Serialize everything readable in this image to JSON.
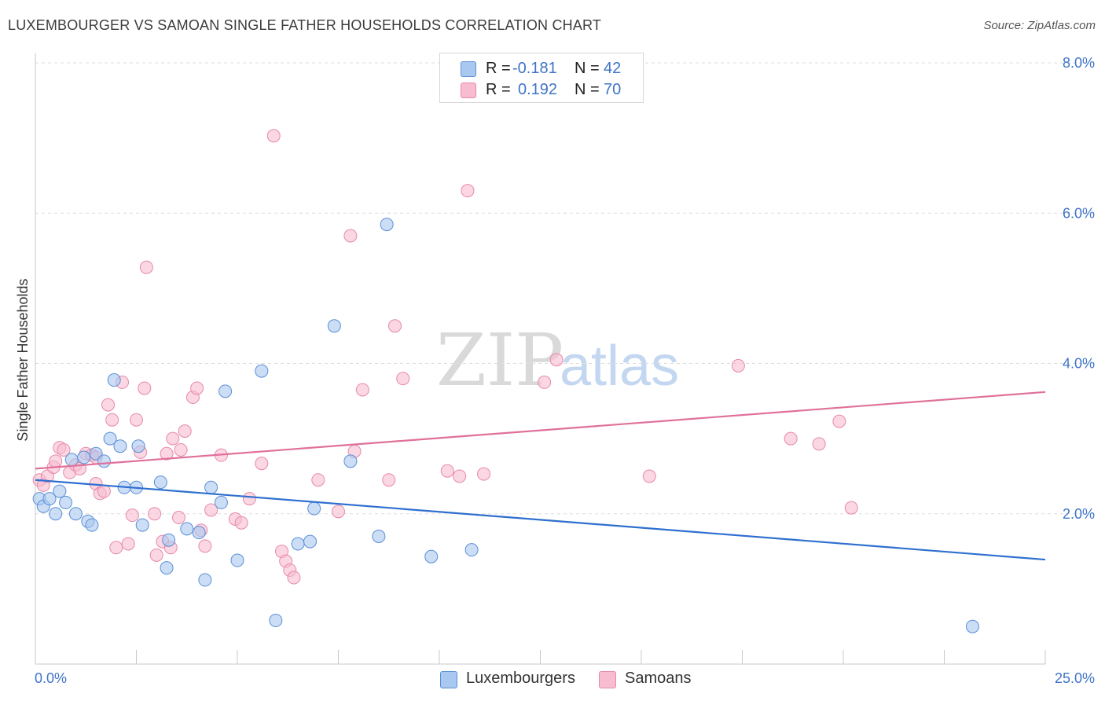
{
  "title": "LUXEMBOURGER VS SAMOAN SINGLE FATHER HOUSEHOLDS CORRELATION CHART",
  "source": "Source: ZipAtlas.com",
  "watermark": {
    "part1": "ZIP",
    "part2": "atlas"
  },
  "legend": {
    "rows": [
      {
        "r_label": "R =",
        "r_value": "-0.181",
        "n_label": "N =",
        "n_value": "42"
      },
      {
        "r_label": "R =",
        "r_value": "0.192",
        "n_label": "N =",
        "n_value": "70"
      }
    ]
  },
  "bottom_legend": {
    "series1": "Luxembourgers",
    "series2": "Samoans"
  },
  "colors": {
    "blue_fill": "#a9c8f0",
    "blue_stroke": "#5b8fd6",
    "blue_line": "#2f6fcf",
    "pink_fill": "#f7bcd0",
    "pink_stroke": "#e889aa",
    "pink_line": "#e0709a",
    "tick_text": "#3f74c8",
    "grid": "#dddddd"
  },
  "chart_data": {
    "type": "scatter",
    "title": "LUXEMBOURGER VS SAMOAN SINGLE FATHER HOUSEHOLDS CORRELATION CHART",
    "xlabel": "",
    "ylabel": "Single Father Households",
    "xlim": [
      0,
      25
    ],
    "ylim": [
      0,
      8
    ],
    "x_tick_labels": [
      "0.0%",
      "25.0%"
    ],
    "y_ticks": [
      2,
      4,
      6,
      8
    ],
    "y_tick_labels": [
      "2.0%",
      "4.0%",
      "6.0%",
      "8.0%"
    ],
    "grid": true,
    "series": [
      {
        "name": "Luxembourgers",
        "r": -0.181,
        "n": 42,
        "trend": {
          "x": [
            0,
            25
          ],
          "y": [
            2.45,
            1.39
          ]
        },
        "points": [
          [
            0.1,
            2.2
          ],
          [
            0.2,
            2.1
          ],
          [
            0.35,
            2.2
          ],
          [
            0.5,
            2.0
          ],
          [
            0.6,
            2.3
          ],
          [
            0.75,
            2.15
          ],
          [
            1.0,
            2.0
          ],
          [
            1.3,
            1.9
          ],
          [
            1.4,
            1.85
          ],
          [
            0.9,
            2.72
          ],
          [
            1.2,
            2.75
          ],
          [
            1.5,
            2.8
          ],
          [
            1.7,
            2.7
          ],
          [
            1.85,
            3.0
          ],
          [
            2.1,
            2.9
          ],
          [
            2.2,
            2.35
          ],
          [
            2.5,
            2.35
          ],
          [
            2.55,
            2.9
          ],
          [
            2.65,
            1.85
          ],
          [
            1.95,
            3.78
          ],
          [
            3.1,
            2.42
          ],
          [
            3.25,
            1.28
          ],
          [
            3.3,
            1.65
          ],
          [
            3.75,
            1.8
          ],
          [
            4.05,
            1.75
          ],
          [
            4.2,
            1.12
          ],
          [
            4.35,
            2.35
          ],
          [
            4.6,
            2.15
          ],
          [
            4.7,
            3.63
          ],
          [
            5.0,
            1.38
          ],
          [
            5.6,
            3.9
          ],
          [
            5.95,
            0.58
          ],
          [
            6.5,
            1.6
          ],
          [
            6.8,
            1.63
          ],
          [
            6.9,
            2.07
          ],
          [
            7.4,
            4.5
          ],
          [
            7.8,
            2.7
          ],
          [
            8.5,
            1.7
          ],
          [
            8.7,
            5.85
          ],
          [
            9.8,
            1.43
          ],
          [
            10.8,
            1.52
          ],
          [
            23.2,
            0.5
          ]
        ]
      },
      {
        "name": "Samoans",
        "r": 0.192,
        "n": 70,
        "trend": {
          "x": [
            0,
            25
          ],
          "y": [
            2.6,
            3.62
          ]
        },
        "points": [
          [
            0.1,
            2.45
          ],
          [
            0.2,
            2.38
          ],
          [
            0.3,
            2.5
          ],
          [
            0.45,
            2.62
          ],
          [
            0.5,
            2.7
          ],
          [
            0.6,
            2.88
          ],
          [
            0.7,
            2.85
          ],
          [
            0.85,
            2.55
          ],
          [
            1.0,
            2.65
          ],
          [
            1.1,
            2.6
          ],
          [
            1.25,
            2.8
          ],
          [
            1.4,
            2.78
          ],
          [
            1.5,
            2.75
          ],
          [
            1.5,
            2.4
          ],
          [
            1.6,
            2.27
          ],
          [
            1.7,
            2.3
          ],
          [
            1.8,
            3.45
          ],
          [
            1.9,
            3.25
          ],
          [
            2.0,
            1.55
          ],
          [
            2.15,
            3.75
          ],
          [
            2.3,
            1.6
          ],
          [
            2.4,
            1.98
          ],
          [
            2.5,
            3.25
          ],
          [
            2.6,
            2.82
          ],
          [
            2.7,
            3.67
          ],
          [
            2.75,
            5.28
          ],
          [
            2.95,
            2.0
          ],
          [
            3.0,
            1.45
          ],
          [
            3.15,
            1.63
          ],
          [
            3.25,
            2.8
          ],
          [
            3.35,
            1.55
          ],
          [
            3.4,
            3.0
          ],
          [
            3.55,
            1.95
          ],
          [
            3.6,
            2.85
          ],
          [
            3.7,
            3.1
          ],
          [
            3.9,
            3.55
          ],
          [
            4.0,
            3.67
          ],
          [
            4.1,
            1.78
          ],
          [
            4.2,
            1.57
          ],
          [
            4.35,
            2.05
          ],
          [
            4.6,
            2.78
          ],
          [
            4.95,
            1.93
          ],
          [
            5.1,
            1.88
          ],
          [
            5.3,
            2.2
          ],
          [
            5.6,
            2.67
          ],
          [
            5.9,
            7.03
          ],
          [
            6.1,
            1.5
          ],
          [
            6.2,
            1.37
          ],
          [
            6.3,
            1.25
          ],
          [
            6.4,
            1.15
          ],
          [
            7.0,
            2.45
          ],
          [
            7.5,
            2.03
          ],
          [
            7.8,
            5.7
          ],
          [
            7.9,
            2.83
          ],
          [
            8.1,
            3.65
          ],
          [
            8.75,
            2.45
          ],
          [
            8.9,
            4.5
          ],
          [
            9.1,
            3.8
          ],
          [
            10.2,
            2.57
          ],
          [
            10.5,
            2.5
          ],
          [
            10.7,
            6.3
          ],
          [
            11.1,
            2.53
          ],
          [
            12.6,
            3.75
          ],
          [
            12.9,
            4.05
          ],
          [
            15.2,
            2.5
          ],
          [
            17.4,
            3.97
          ],
          [
            18.7,
            3.0
          ],
          [
            19.4,
            2.93
          ],
          [
            19.9,
            3.23
          ],
          [
            20.2,
            2.08
          ]
        ]
      }
    ]
  }
}
